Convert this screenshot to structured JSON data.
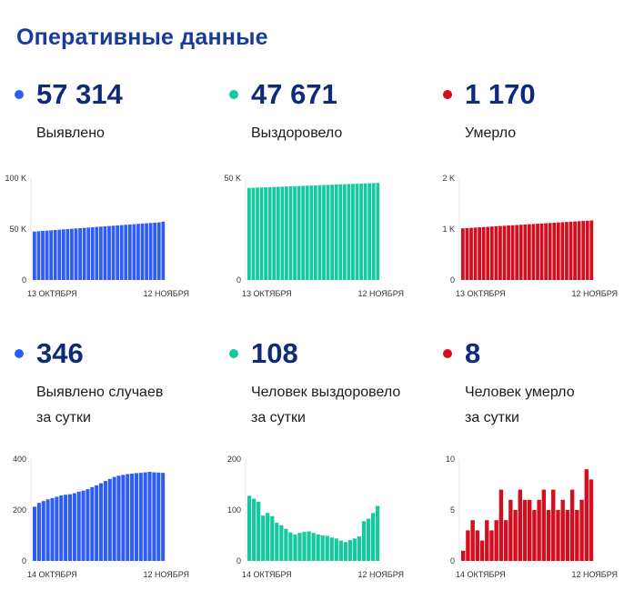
{
  "page": {
    "title": "Оперативные данные"
  },
  "colors": {
    "blue": "#2f5cf5",
    "teal": "#14c99e",
    "red": "#d40d1f",
    "title": "#1a3aa0",
    "value": "#102a7a"
  },
  "panels": [
    {
      "value": "57 314",
      "label": [
        "Выявлено"
      ],
      "color": "#2f5cf5"
    },
    {
      "value": "47 671",
      "label": [
        "Выздоровело"
      ],
      "color": "#14c99e"
    },
    {
      "value": "1 170",
      "label": [
        "Умерло"
      ],
      "color": "#d40d1f"
    },
    {
      "value": "346",
      "label": [
        "Выявлено случаев",
        "за сутки"
      ],
      "color": "#2f5cf5"
    },
    {
      "value": "108",
      "label": [
        "Человек выздоровело",
        "за сутки"
      ],
      "color": "#14c99e"
    },
    {
      "value": "8",
      "label": [
        "Человек умерло",
        "за сутки"
      ],
      "color": "#d40d1f"
    }
  ],
  "chart_data": [
    {
      "type": "bar",
      "title": "",
      "xlabel": "",
      "ylabel": "",
      "ylim": [
        0,
        100000
      ],
      "yticks": [
        {
          "v": 0,
          "t": "0"
        },
        {
          "v": 50000,
          "t": "50 K"
        },
        {
          "v": 100000,
          "t": "100 K"
        }
      ],
      "xlabels": [
        "13 ОКТЯБРЯ",
        "12 НОЯБРЯ"
      ],
      "color": "#2f5cf5",
      "grid": false,
      "values": [
        47600,
        47900,
        48200,
        48500,
        48800,
        49100,
        49400,
        49700,
        50000,
        50300,
        50600,
        50900,
        51200,
        51500,
        51800,
        52100,
        52400,
        52700,
        53000,
        53300,
        53600,
        53900,
        54200,
        54500,
        54800,
        55100,
        55400,
        55700,
        56000,
        56300,
        56600,
        57314
      ]
    },
    {
      "type": "bar",
      "title": "",
      "xlabel": "",
      "ylabel": "",
      "ylim": [
        0,
        50000
      ],
      "yticks": [
        {
          "v": 0,
          "t": "0"
        },
        {
          "v": 50000,
          "t": "50 K"
        }
      ],
      "xlabels": [
        "13 ОКТЯБРЯ",
        "12 НОЯБРЯ"
      ],
      "color": "#14c99e",
      "grid": false,
      "values": [
        45200,
        45280,
        45360,
        45440,
        45520,
        45600,
        45680,
        45760,
        45840,
        45920,
        46000,
        46080,
        46160,
        46240,
        46320,
        46400,
        46480,
        46560,
        46640,
        46720,
        46800,
        46880,
        46960,
        47040,
        47120,
        47200,
        47280,
        47360,
        47440,
        47520,
        47600,
        47671
      ]
    },
    {
      "type": "bar",
      "title": "",
      "xlabel": "",
      "ylabel": "",
      "ylim": [
        0,
        2000
      ],
      "yticks": [
        {
          "v": 0,
          "t": "0"
        },
        {
          "v": 1000,
          "t": "1 K"
        },
        {
          "v": 2000,
          "t": "2 K"
        }
      ],
      "xlabels": [
        "13 ОКТЯБРЯ",
        "12 НОЯБРЯ"
      ],
      "color": "#d40d1f",
      "grid": false,
      "values": [
        1015,
        1020,
        1025,
        1030,
        1035,
        1040,
        1045,
        1050,
        1055,
        1060,
        1065,
        1070,
        1075,
        1080,
        1085,
        1090,
        1095,
        1100,
        1105,
        1110,
        1115,
        1120,
        1125,
        1130,
        1135,
        1140,
        1145,
        1150,
        1155,
        1160,
        1165,
        1170
      ]
    },
    {
      "type": "bar",
      "title": "",
      "xlabel": "",
      "ylabel": "",
      "ylim": [
        0,
        400
      ],
      "yticks": [
        {
          "v": 0,
          "t": "0"
        },
        {
          "v": 200,
          "t": "200"
        },
        {
          "v": 400,
          "t": "400"
        }
      ],
      "xlabels": [
        "14 ОКТЯБРЯ",
        "12 НОЯБРЯ"
      ],
      "color": "#2f5cf5",
      "grid": false,
      "values": [
        213,
        228,
        235,
        242,
        247,
        252,
        257,
        260,
        262,
        266,
        272,
        276,
        282,
        290,
        297,
        305,
        314,
        322,
        330,
        335,
        338,
        341,
        343,
        345,
        346,
        348,
        350,
        348,
        347,
        346
      ]
    },
    {
      "type": "bar",
      "title": "",
      "xlabel": "",
      "ylabel": "",
      "ylim": [
        0,
        200
      ],
      "yticks": [
        {
          "v": 0,
          "t": "0"
        },
        {
          "v": 100,
          "t": "100"
        },
        {
          "v": 200,
          "t": "200"
        }
      ],
      "xlabels": [
        "14 ОКТЯБРЯ",
        "12 НОЯБРЯ"
      ],
      "color": "#14c99e",
      "grid": false,
      "values": [
        128,
        122,
        116,
        89,
        94,
        88,
        75,
        70,
        63,
        56,
        52,
        55,
        57,
        58,
        55,
        52,
        50,
        49,
        46,
        44,
        40,
        37,
        41,
        44,
        48,
        78,
        83,
        94,
        108
      ]
    },
    {
      "type": "bar",
      "title": "",
      "xlabel": "",
      "ylabel": "",
      "ylim": [
        0,
        10
      ],
      "yticks": [
        {
          "v": 0,
          "t": "0"
        },
        {
          "v": 5,
          "t": "5"
        },
        {
          "v": 10,
          "t": "10"
        }
      ],
      "xlabels": [
        "14 ОКТЯБРЯ",
        "12 НОЯБРЯ"
      ],
      "color": "#d40d1f",
      "grid": false,
      "values": [
        1,
        3,
        4,
        3,
        2,
        4,
        3,
        4,
        7,
        4,
        6,
        5,
        7,
        6,
        6,
        5,
        6,
        7,
        5,
        7,
        5,
        6,
        5,
        7,
        5,
        6,
        9,
        8
      ]
    }
  ]
}
